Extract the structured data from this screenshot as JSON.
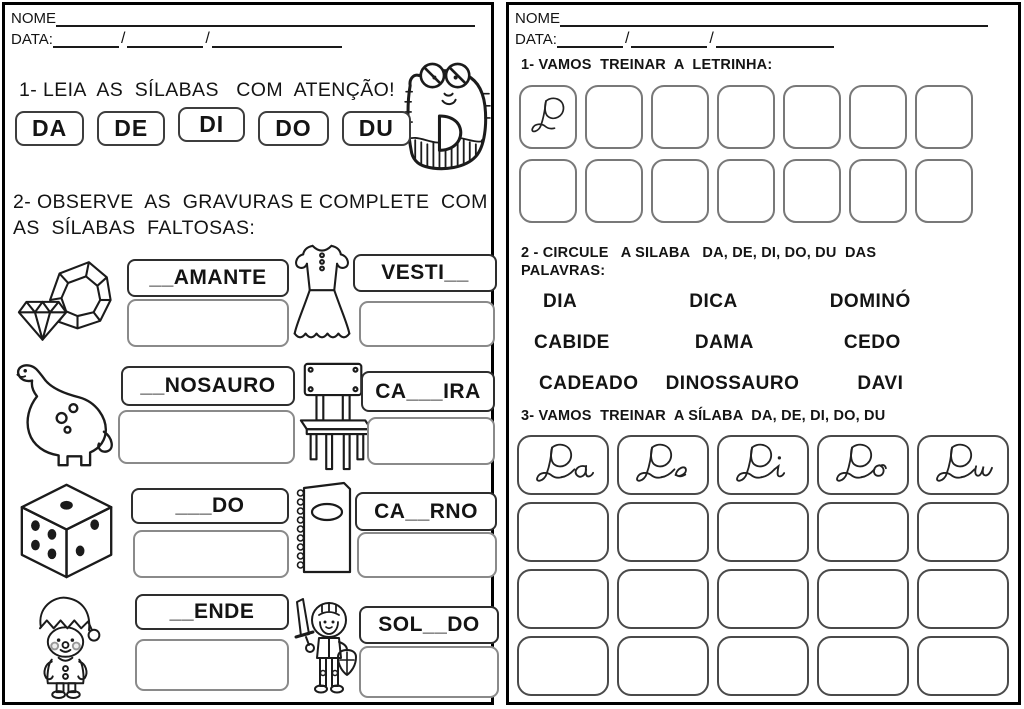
{
  "slash": "/",
  "left_page": {
    "name_label": "NOME",
    "date_label": "DATA:",
    "s1_heading": "1- LEIA  AS  SÍLABAS   COM  ATENÇÃO!",
    "mascot": "letter-D-monster",
    "syllables": [
      "DA",
      "DE",
      "DI",
      "DO",
      "DU"
    ],
    "s2_heading_line1": "2- OBSERVE  AS  GRAVURAS E COMPLETE  COM",
    "s2_heading_line2": "AS  SÍLABAS  FALTOSAS:",
    "items": [
      {
        "image": "diamond-ring",
        "word": "__AMANTE"
      },
      {
        "image": "dress",
        "word": "VESTI__"
      },
      {
        "image": "dinosaur",
        "word": "__NOSAURO"
      },
      {
        "image": "chair",
        "word": "CA___IRA"
      },
      {
        "image": "dice",
        "word": "___DO"
      },
      {
        "image": "notebook",
        "word": "CA__RNO"
      },
      {
        "image": "elf",
        "word": "__ENDE"
      },
      {
        "image": "knight",
        "word": "SOL__DO"
      }
    ]
  },
  "right_page": {
    "name_label": "NOME",
    "date_label": "DATA:",
    "s1_heading": "1- VAMOS  TREINAR  A  LETRINHA:",
    "s1_model": "D",
    "s1_grid": {
      "rows": 2,
      "cols": 7
    },
    "s2_heading_line1": "2 - CIRCULE   A SILABA   DA, DE, DI, DO, DU  DAS",
    "s2_heading_line2": "PALAVRAS:",
    "words": [
      "DIA",
      "DICA",
      "DOMINÓ",
      "CABIDE",
      "DAMA",
      "CEDO",
      "CADEADO",
      "DINOSSAURO",
      "DAVI"
    ],
    "s3_heading": "3- VAMOS  TREINAR  A SÍLABA  DA, DE, DI, DO, DU",
    "s3_models": [
      "Da",
      "De",
      "Di",
      "Do",
      "Du"
    ],
    "s3_grid": {
      "rows": 4,
      "cols": 5
    }
  }
}
